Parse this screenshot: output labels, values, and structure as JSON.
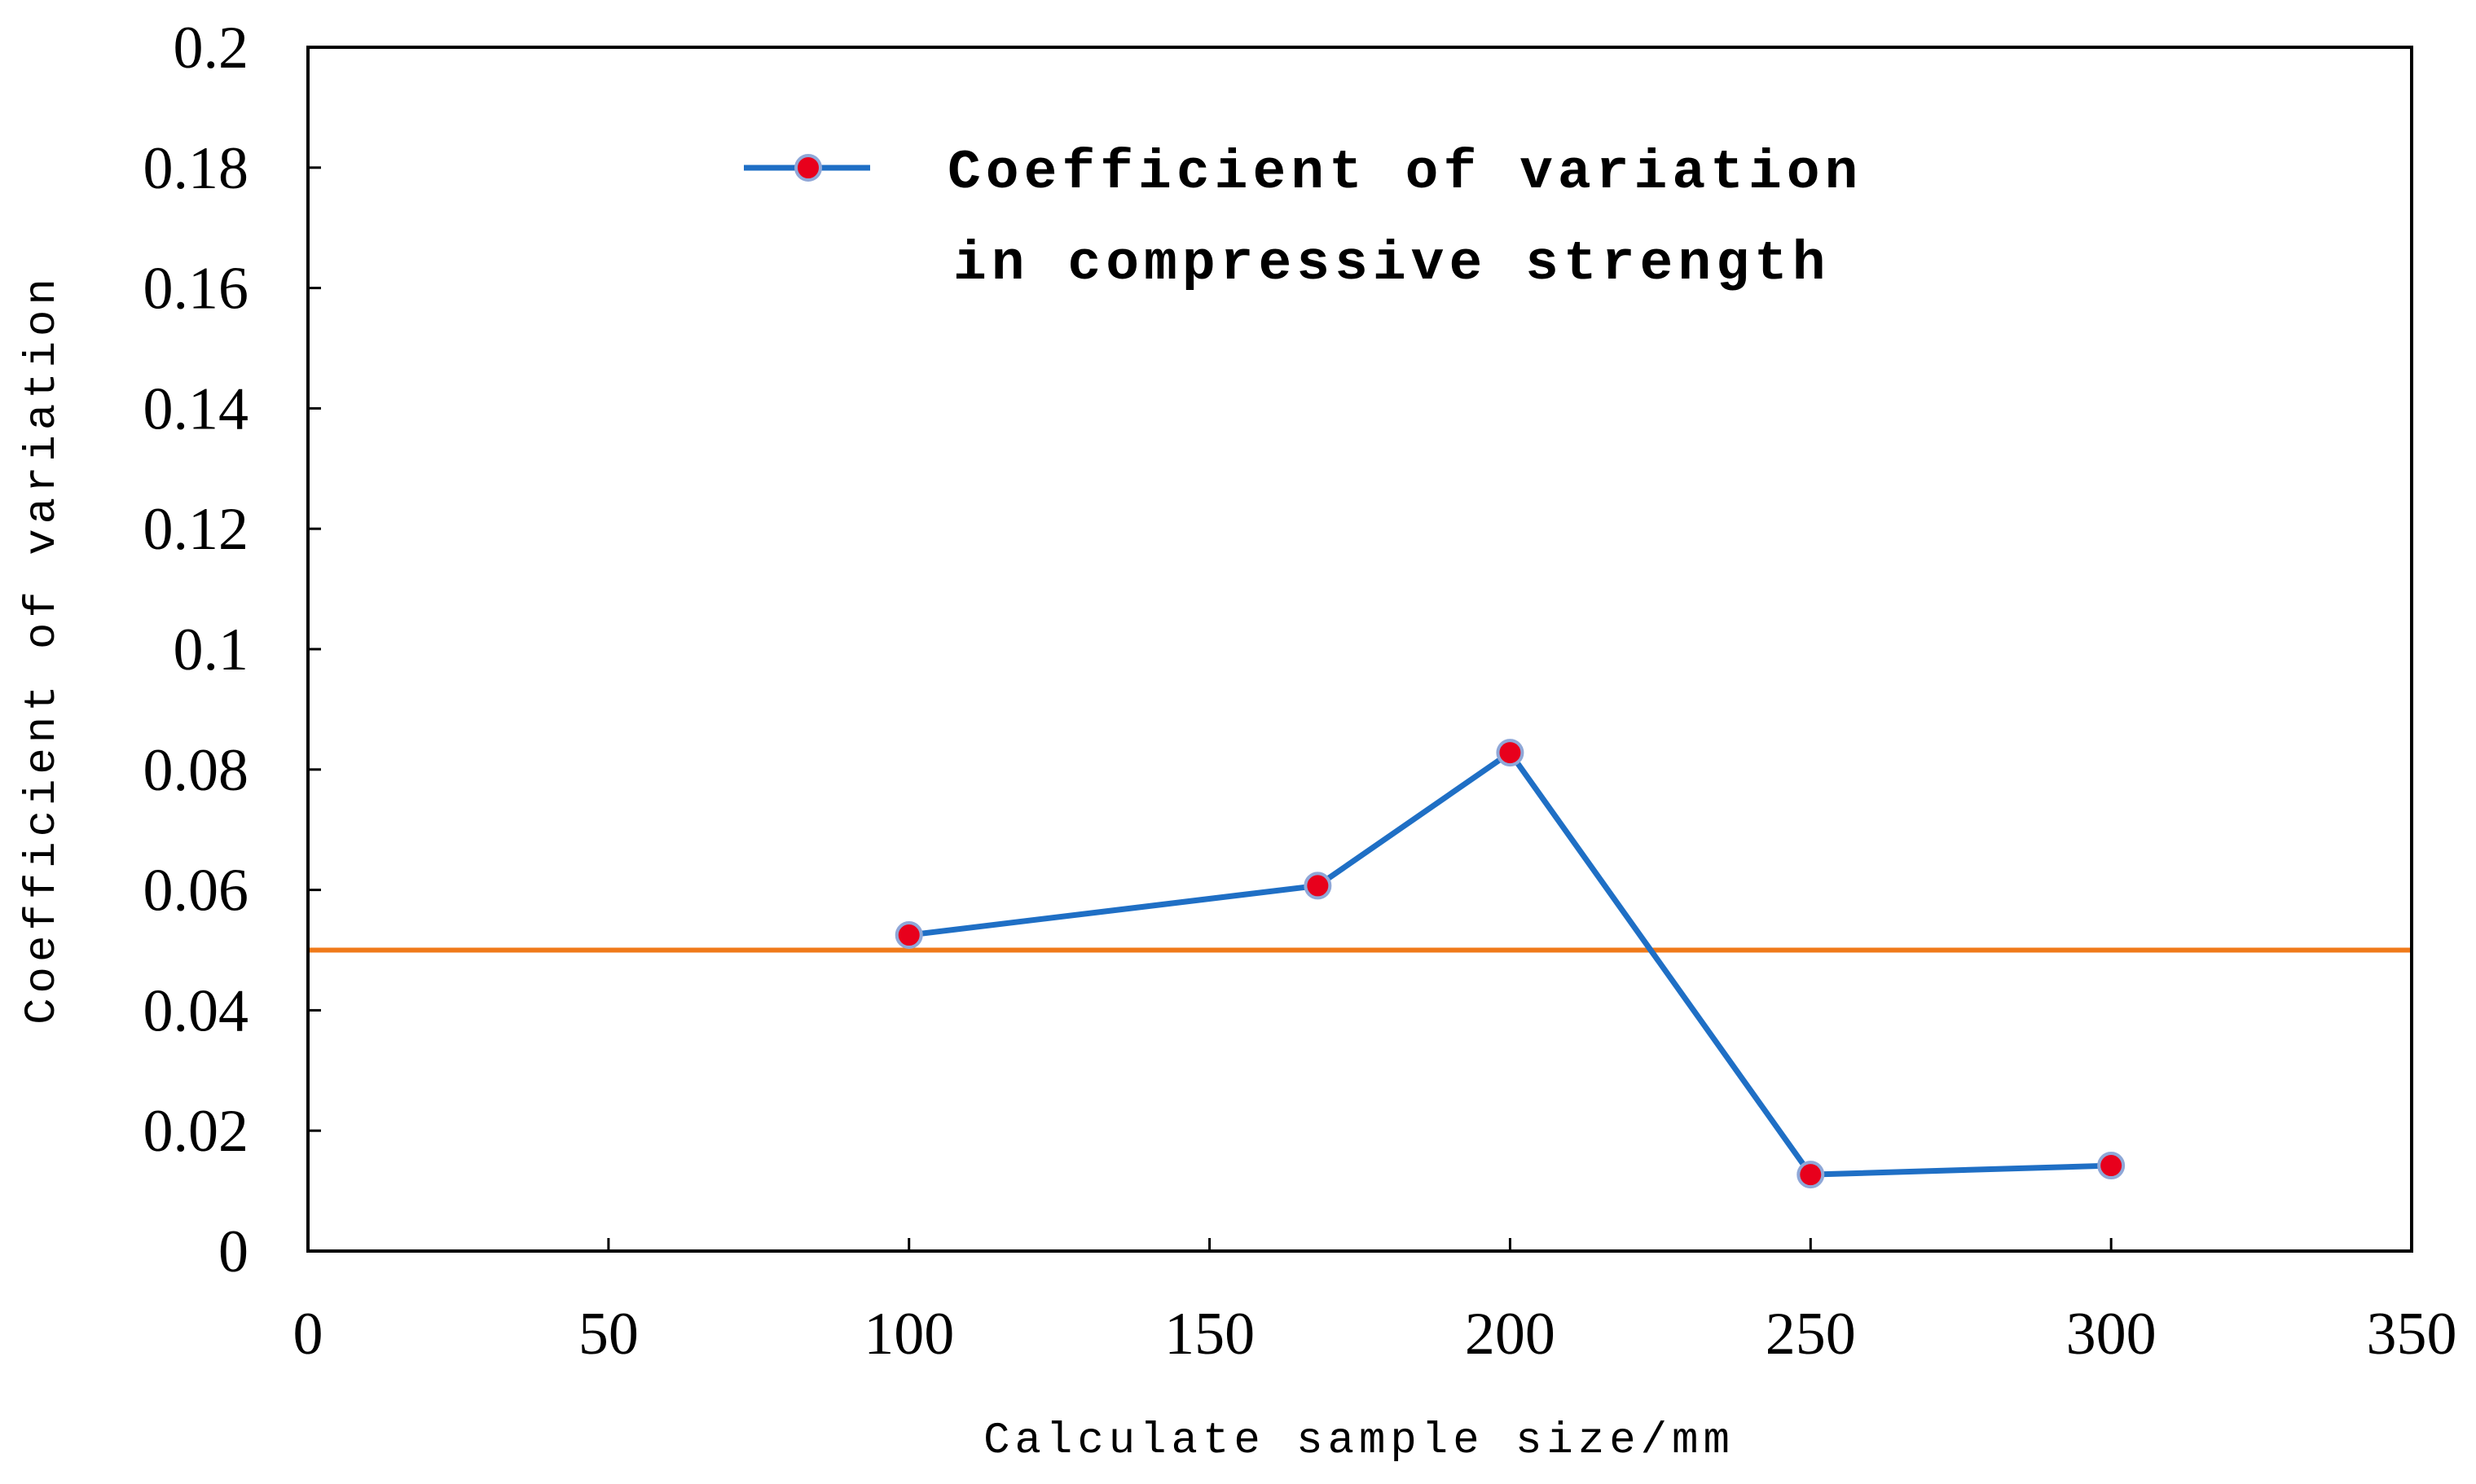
{
  "chart_data": {
    "type": "line",
    "title": "",
    "xlabel": "Calculate sample size/mm",
    "ylabel": "Coefficient of variation",
    "xlim": [
      0,
      350
    ],
    "ylim": [
      0,
      0.2
    ],
    "x_ticks": [
      "0",
      "50",
      "100",
      "150",
      "200",
      "250",
      "300",
      "350"
    ],
    "y_ticks": [
      "0",
      "0.02",
      "0.04",
      "0.06",
      "0.08",
      "0.1",
      "0.12",
      "0.14",
      "0.16",
      "0.18",
      "0.2"
    ],
    "grid": false,
    "legend_position": "top-center",
    "series": [
      {
        "name": "Coefficient of variation in compressive strength",
        "legend_lines": [
          "Coefficient of variation",
          "in compressive strength"
        ],
        "line_color": "#1f6fc5",
        "marker_color": "#e8001c",
        "x": [
          100,
          168,
          200,
          250,
          300
        ],
        "y": [
          0.0525,
          0.0607,
          0.0828,
          0.0127,
          0.0142
        ]
      }
    ],
    "reference_line": {
      "y": 0.05,
      "color": "#f07a1a"
    }
  }
}
